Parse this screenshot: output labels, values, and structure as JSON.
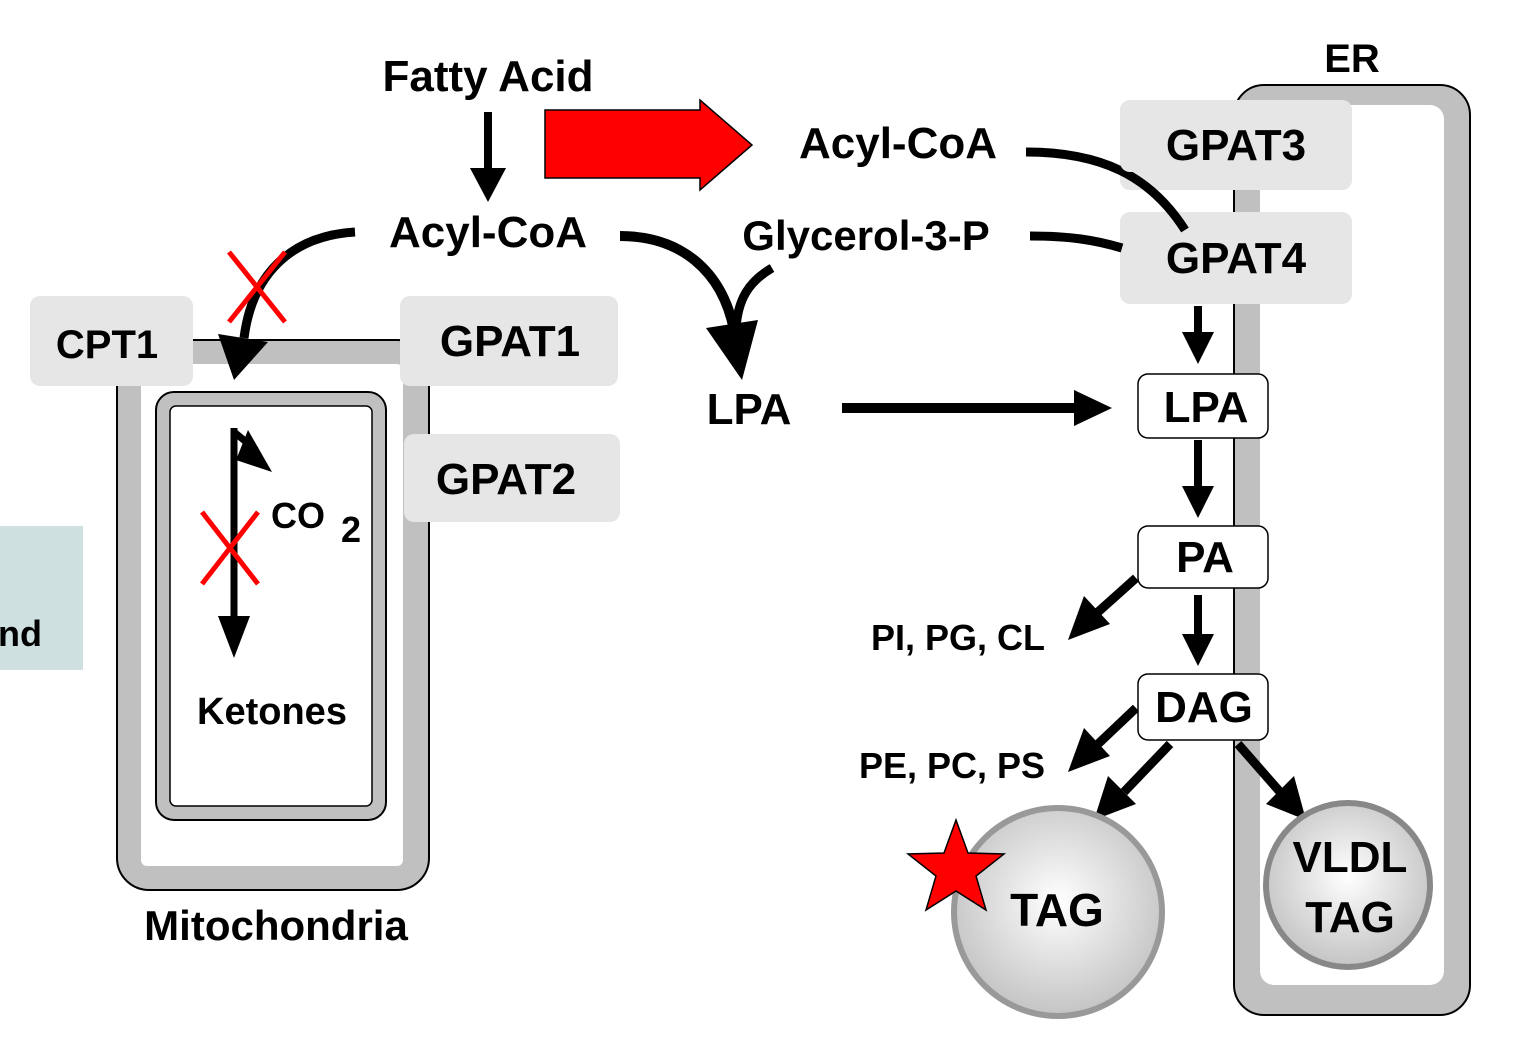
{
  "labels": {
    "fatty_acid": "Fatty Acid",
    "acyl_coa_left": "Acyl-CoA",
    "acyl_coa_right": "Acyl-CoA",
    "glycerol_3_p": "Glycerol-3-P",
    "lpa_free": "LPA",
    "er": "ER",
    "mitochondria": "Mitochondria",
    "co2_main": "CO",
    "co2_sub": "2",
    "ketones": "Ketones",
    "pi_pg_cl": "PI, PG, CL",
    "pe_pc_ps": "PE, PC, PS",
    "partial_text": "nd"
  },
  "enzymes": {
    "cpt1": "CPT1",
    "gpat1": "GPAT1",
    "gpat2": "GPAT2",
    "gpat3": "GPAT3",
    "gpat4": "GPAT4"
  },
  "pathway_boxes": {
    "lpa": "LPA",
    "pa": "PA",
    "dag": "DAG"
  },
  "droplets": {
    "tag": "TAG",
    "vldl_line1": "VLDL",
    "vldl_line2": "TAG"
  },
  "colors": {
    "highlight_arrow": "#ff0000",
    "block_mark": "#ff0000",
    "star": "#ff0000",
    "enzyme_box": "#e6e6e6",
    "membrane": "#c0c0c0",
    "side_panel": "#cfe0e0"
  }
}
